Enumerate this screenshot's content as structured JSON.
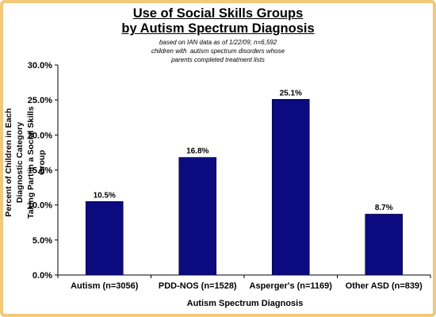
{
  "title_line1": "Use of Social Skills Groups",
  "title_line2": "by Autism Spectrum Diagnosis",
  "subtitle_line1": "based on IAN data as of 1/22/09; n=6,592",
  "subtitle_line2": "children with  autism spectrum disorders whose",
  "subtitle_line3": "parents completed treatment lists",
  "chart_data": {
    "type": "bar",
    "title": "Use of Social Skills Groups by Autism Spectrum Diagnosis",
    "categories": [
      "Autism (n=3056)",
      "PDD-NOS (n=1528)",
      "Asperger's (n=1169)",
      "Other ASD (n=839)"
    ],
    "values": [
      10.5,
      16.8,
      25.1,
      8.7
    ],
    "data_labels": [
      "10.5%",
      "16.8%",
      "25.1%",
      "8.7%"
    ],
    "xlabel": "Autism Spectrum Diagnosis",
    "ylabel": "Percent of Children in Each Diagnostic Category Taking Part in a Social Skills Group",
    "ylabel_line1": "Percent of Children in Each Diagnostic Category",
    "ylabel_line2": "Taking Part in a Social Skills Group",
    "ylim": [
      0,
      30
    ],
    "yticks": [
      0,
      5,
      10,
      15,
      20,
      25,
      30
    ],
    "ytick_labels": [
      "0.0%",
      "5.0%",
      "10.0%",
      "15.0%",
      "20.0%",
      "25.0%",
      "30.0%"
    ],
    "grid": false,
    "bar_color": "#0b0b7f"
  }
}
